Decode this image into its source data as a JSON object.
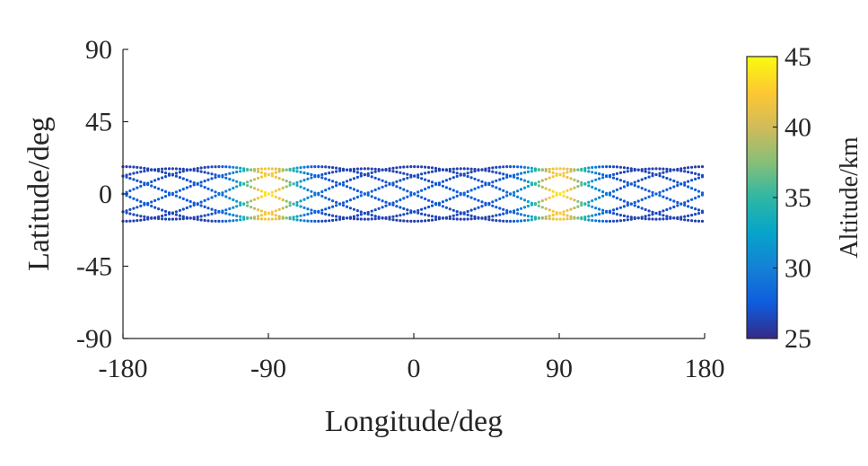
{
  "chart_data": {
    "type": "scatter",
    "xlabel": "Longitude/deg",
    "ylabel": "Latitude/deg",
    "xlim": [
      -180,
      180
    ],
    "ylim": [
      -90,
      90
    ],
    "xticks": [
      -180,
      -90,
      0,
      90,
      180
    ],
    "yticks": [
      90,
      45,
      0,
      -45,
      -90
    ],
    "grid": false,
    "colorbar": {
      "label": "Altitude/km",
      "range": [
        25,
        45
      ],
      "ticks": [
        45,
        40,
        35,
        30,
        25
      ],
      "colormap": "parula",
      "colors": [
        "#352a87",
        "#0f5cdd",
        "#1481d6",
        "#06a4ca",
        "#2eb7a4",
        "#87bf77",
        "#d1bb59",
        "#fec832",
        "#f9fb0e"
      ]
    },
    "series": [
      {
        "description_key": "ground tracks",
        "track_count": 8,
        "amplitude_deg": [
          15,
          17
        ],
        "period_deg": 240,
        "sample": [
          {
            "lon": -180,
            "lat": 16.5,
            "alt": 26
          },
          {
            "lon": -150,
            "lat": 8.3,
            "alt": 29
          },
          {
            "lon": -120,
            "lat": 1.5,
            "alt": 33
          },
          {
            "lon": -100,
            "lat": -0.5,
            "alt": 40
          },
          {
            "lon": -90,
            "lat": -8.5,
            "alt": 42
          },
          {
            "lon": -60,
            "lat": -14.3,
            "alt": 32
          },
          {
            "lon": -30,
            "lat": -16.5,
            "alt": 28
          },
          {
            "lon": 0,
            "lat": -14.3,
            "alt": 27
          },
          {
            "lon": 30,
            "lat": -8.3,
            "alt": 28
          },
          {
            "lon": 60,
            "lat": 0,
            "alt": 33
          },
          {
            "lon": 90,
            "lat": 8.3,
            "alt": 41
          },
          {
            "lon": 120,
            "lat": 14.3,
            "alt": 31
          },
          {
            "lon": 150,
            "lat": 16.5,
            "alt": 27
          },
          {
            "lon": 180,
            "lat": 14.3,
            "alt": 26
          }
        ]
      }
    ]
  }
}
